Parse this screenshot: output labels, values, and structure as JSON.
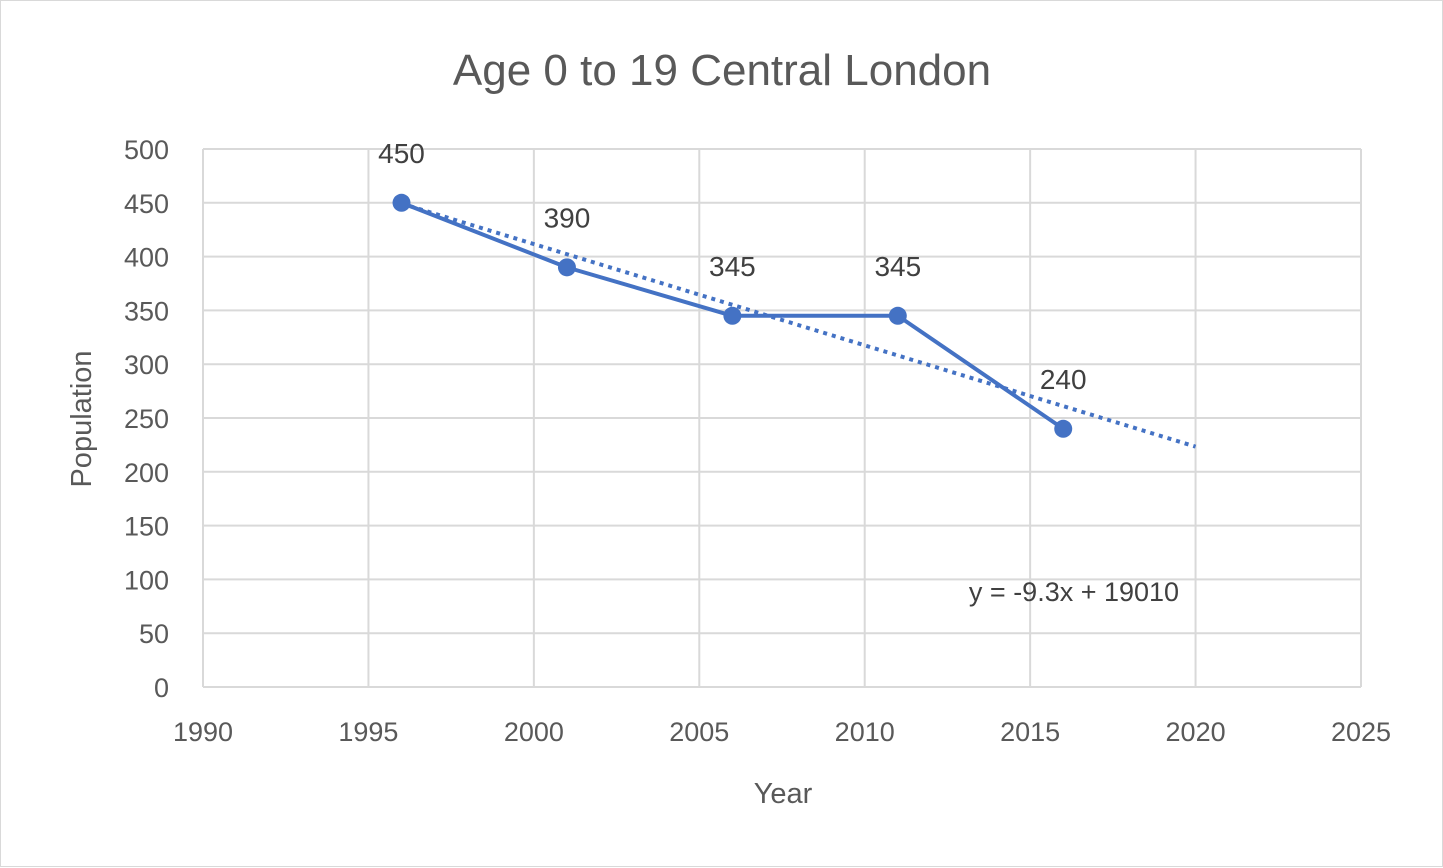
{
  "chart_data": {
    "type": "scatter",
    "title": "Age 0 to 19 Central London",
    "xlabel": "Year",
    "ylabel": "Population",
    "xlim": [
      1990,
      2025
    ],
    "ylim": [
      0,
      500
    ],
    "x_ticks": [
      1990,
      1995,
      2000,
      2005,
      2010,
      2015,
      2020,
      2025
    ],
    "y_ticks": [
      0,
      50,
      100,
      150,
      200,
      250,
      300,
      350,
      400,
      450,
      500
    ],
    "grid": true,
    "legend": "none",
    "series": [
      {
        "x": [
          1996,
          2001,
          2006,
          2011,
          2016
        ],
        "y": [
          450,
          390,
          345,
          345,
          240
        ],
        "data_labels": [
          "450",
          "390",
          "345",
          "345",
          "240"
        ],
        "color": "#4472c4",
        "marker": "circle",
        "line": "solid"
      }
    ],
    "trendline": {
      "type": "linear",
      "equation": "y = -9.3x + 19010",
      "x_range": [
        1996,
        2020
      ],
      "y_range": [
        449.3,
        223.4
      ],
      "color": "#4472c4",
      "style": "dotted"
    }
  }
}
